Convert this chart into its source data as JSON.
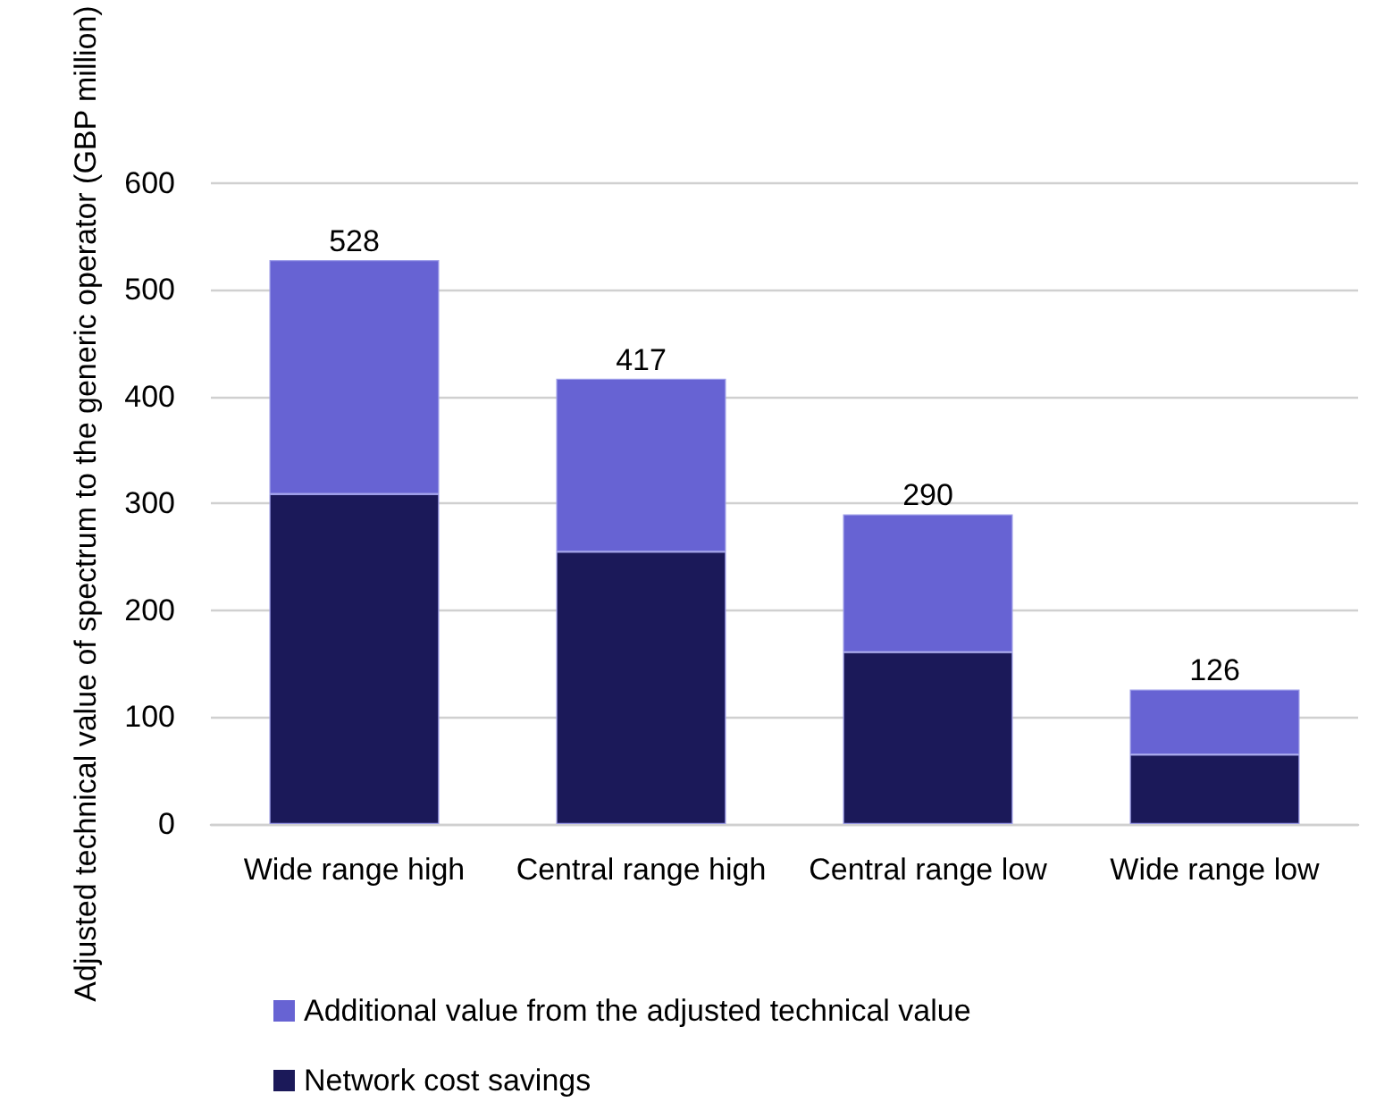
{
  "chart_data": {
    "type": "bar",
    "stacked": true,
    "ylabel": "Adjusted technical value of spectrum to the generic operator (GBP million)",
    "categories": [
      "Wide range high",
      "Central range high",
      "Central range low",
      "Wide range low"
    ],
    "series": [
      {
        "name": "Network cost savings",
        "color": "#1b1959",
        "values": [
          309,
          255,
          161,
          65
        ]
      },
      {
        "name": "Additional value from the adjusted technical value",
        "color": "#6763d3",
        "values": [
          219,
          162,
          129,
          61
        ]
      }
    ],
    "totals": [
      "528",
      "417",
      "290",
      "126"
    ],
    "ylim": [
      0,
      600
    ],
    "yticks": [
      0,
      100,
      200,
      300,
      400,
      500,
      600
    ],
    "grid": "y",
    "legend": "bottom"
  }
}
